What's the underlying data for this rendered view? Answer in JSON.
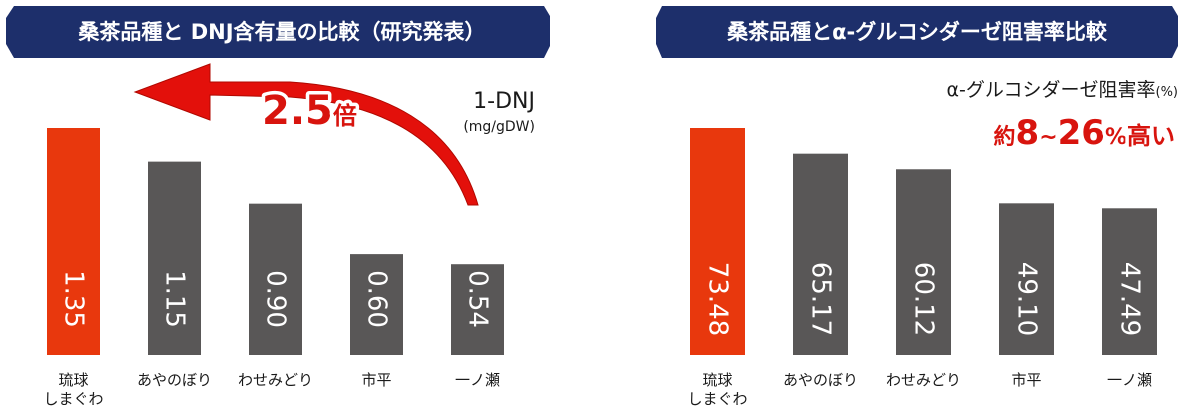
{
  "colors": {
    "highlight": "#e8380d",
    "bar": "#595757",
    "title_bg": "#1d2f6b"
  },
  "chart_data": [
    {
      "type": "bar",
      "title": "桑茶品種と DNJ含有量の比較（研究発表）",
      "unit_label": "1-DNJ",
      "unit_sub": "(mg/gDW)",
      "categories": [
        [
          "琉球",
          "しまぐわ"
        ],
        [
          "あやのぼり"
        ],
        [
          "わせみどり"
        ],
        [
          "市平"
        ],
        [
          "一ノ瀬"
        ]
      ],
      "values": [
        1.35,
        1.15,
        0.9,
        0.6,
        0.54
      ],
      "value_labels": [
        "1.35",
        "1.15",
        "0.90",
        "0.60",
        "0.54"
      ],
      "highlight_index": 0,
      "ylim": [
        0,
        1.5
      ],
      "callout": {
        "number": "2.5",
        "suffix": "倍"
      }
    },
    {
      "type": "bar",
      "title": "桑茶品種とα-グルコシダーゼ阻害率比較",
      "unit_label": "α-グルコシダーゼ阻害率",
      "unit_suffix": "(%)",
      "categories": [
        [
          "琉球",
          "しまぐわ"
        ],
        [
          "あやのぼり"
        ],
        [
          "わせみどり"
        ],
        [
          "市平"
        ],
        [
          "一ノ瀬"
        ]
      ],
      "values": [
        73.48,
        65.17,
        60.12,
        49.1,
        47.49
      ],
      "value_labels": [
        "73.48",
        "65.17",
        "60.12",
        "49.10",
        "47.49"
      ],
      "highlight_index": 0,
      "ylim": [
        0,
        82
      ],
      "callout": {
        "prefix": "約",
        "n1": "8",
        "tilde": "~",
        "n2": "26",
        "pct": "%",
        "suffix": "高い"
      }
    }
  ]
}
